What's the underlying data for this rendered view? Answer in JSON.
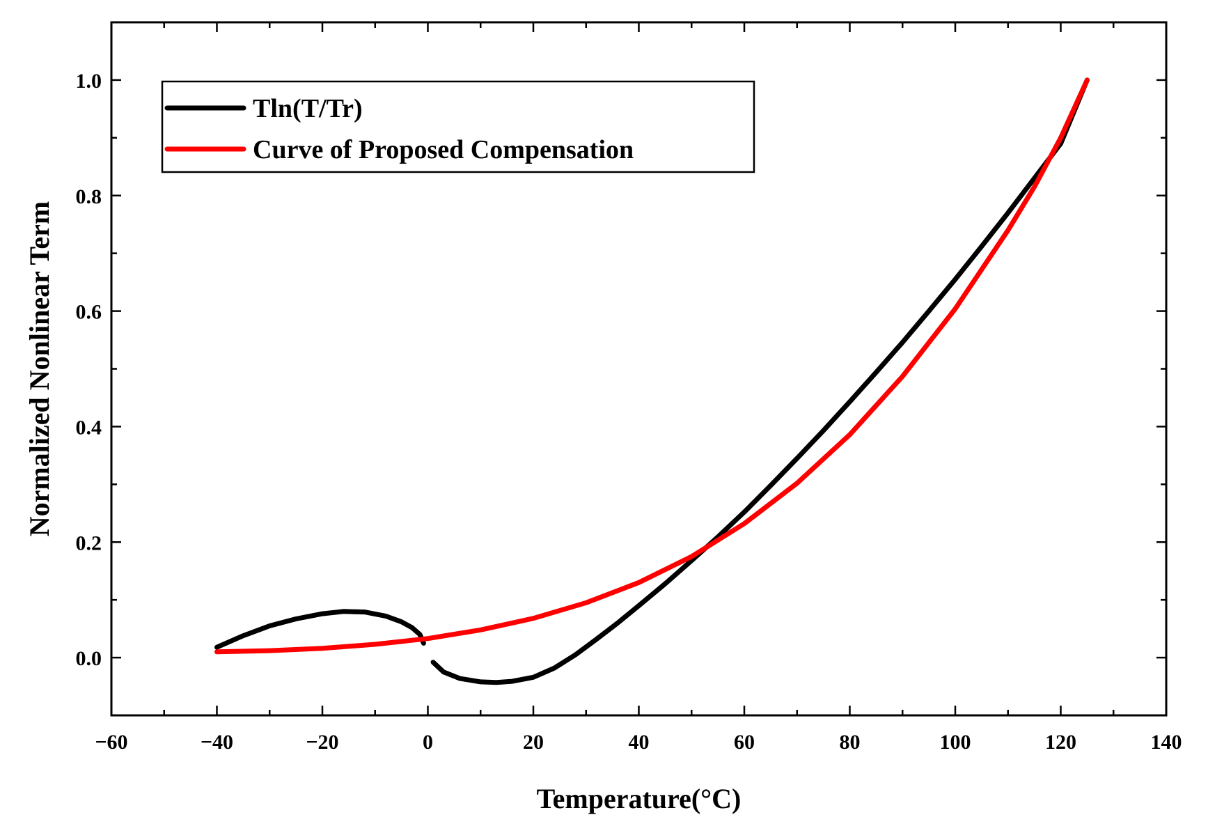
{
  "chart_data": {
    "type": "line",
    "title": "",
    "xlabel": "Temperature(°C)",
    "ylabel": "Normalized Nonlinear Term",
    "xlim": [
      -60,
      140
    ],
    "ylim": [
      -0.1,
      1.1
    ],
    "x_ticks": [
      -60,
      -40,
      -20,
      0,
      20,
      40,
      60,
      80,
      100,
      120,
      140
    ],
    "x_tick_labels": [
      "−60",
      "−40",
      "−20",
      "0",
      "20",
      "40",
      "60",
      "80",
      "100",
      "120",
      "140"
    ],
    "y_ticks": [
      0.0,
      0.2,
      0.4,
      0.6,
      0.8,
      1.0
    ],
    "y_tick_labels": [
      "0.0",
      "0.2",
      "0.4",
      "0.6",
      "0.8",
      "1.0"
    ],
    "grid": false,
    "legend_position": "top-left",
    "series": [
      {
        "name": "Tln(T/Tr)",
        "color": "#000000",
        "segments": [
          {
            "x": [
              -40,
              -35,
              -30,
              -25,
              -20,
              -16,
              -12,
              -8,
              -5,
              -3,
              -1.5,
              -0.8
            ],
            "y": [
              0.018,
              0.038,
              0.055,
              0.067,
              0.076,
              0.08,
              0.079,
              0.072,
              0.062,
              0.052,
              0.04,
              0.025
            ]
          },
          {
            "x": [
              1,
              3,
              6,
              10,
              13,
              16,
              20,
              24,
              28,
              32,
              36,
              40,
              45,
              50,
              55,
              60,
              65,
              70,
              75,
              80,
              85,
              90,
              95,
              100,
              105,
              110,
              115,
              120,
              125
            ],
            "y": [
              -0.008,
              -0.025,
              -0.036,
              -0.042,
              -0.043,
              -0.041,
              -0.034,
              -0.018,
              0.005,
              0.032,
              0.06,
              0.09,
              0.128,
              0.168,
              0.209,
              0.252,
              0.298,
              0.345,
              0.393,
              0.443,
              0.494,
              0.546,
              0.6,
              0.655,
              0.712,
              0.77,
              0.83,
              0.89,
              1.0
            ]
          }
        ]
      },
      {
        "name": "Curve of Proposed Compensation",
        "color": "#ff0000",
        "segments": [
          {
            "x": [
              -40,
              -30,
              -20,
              -10,
              0,
              10,
              20,
              30,
              40,
              50,
              60,
              70,
              80,
              90,
              100,
              110,
              115,
              120,
              125
            ],
            "y": [
              0.01,
              0.012,
              0.016,
              0.023,
              0.033,
              0.048,
              0.068,
              0.095,
              0.13,
              0.175,
              0.232,
              0.302,
              0.386,
              0.487,
              0.604,
              0.74,
              0.815,
              0.9,
              1.0
            ]
          }
        ]
      }
    ]
  }
}
